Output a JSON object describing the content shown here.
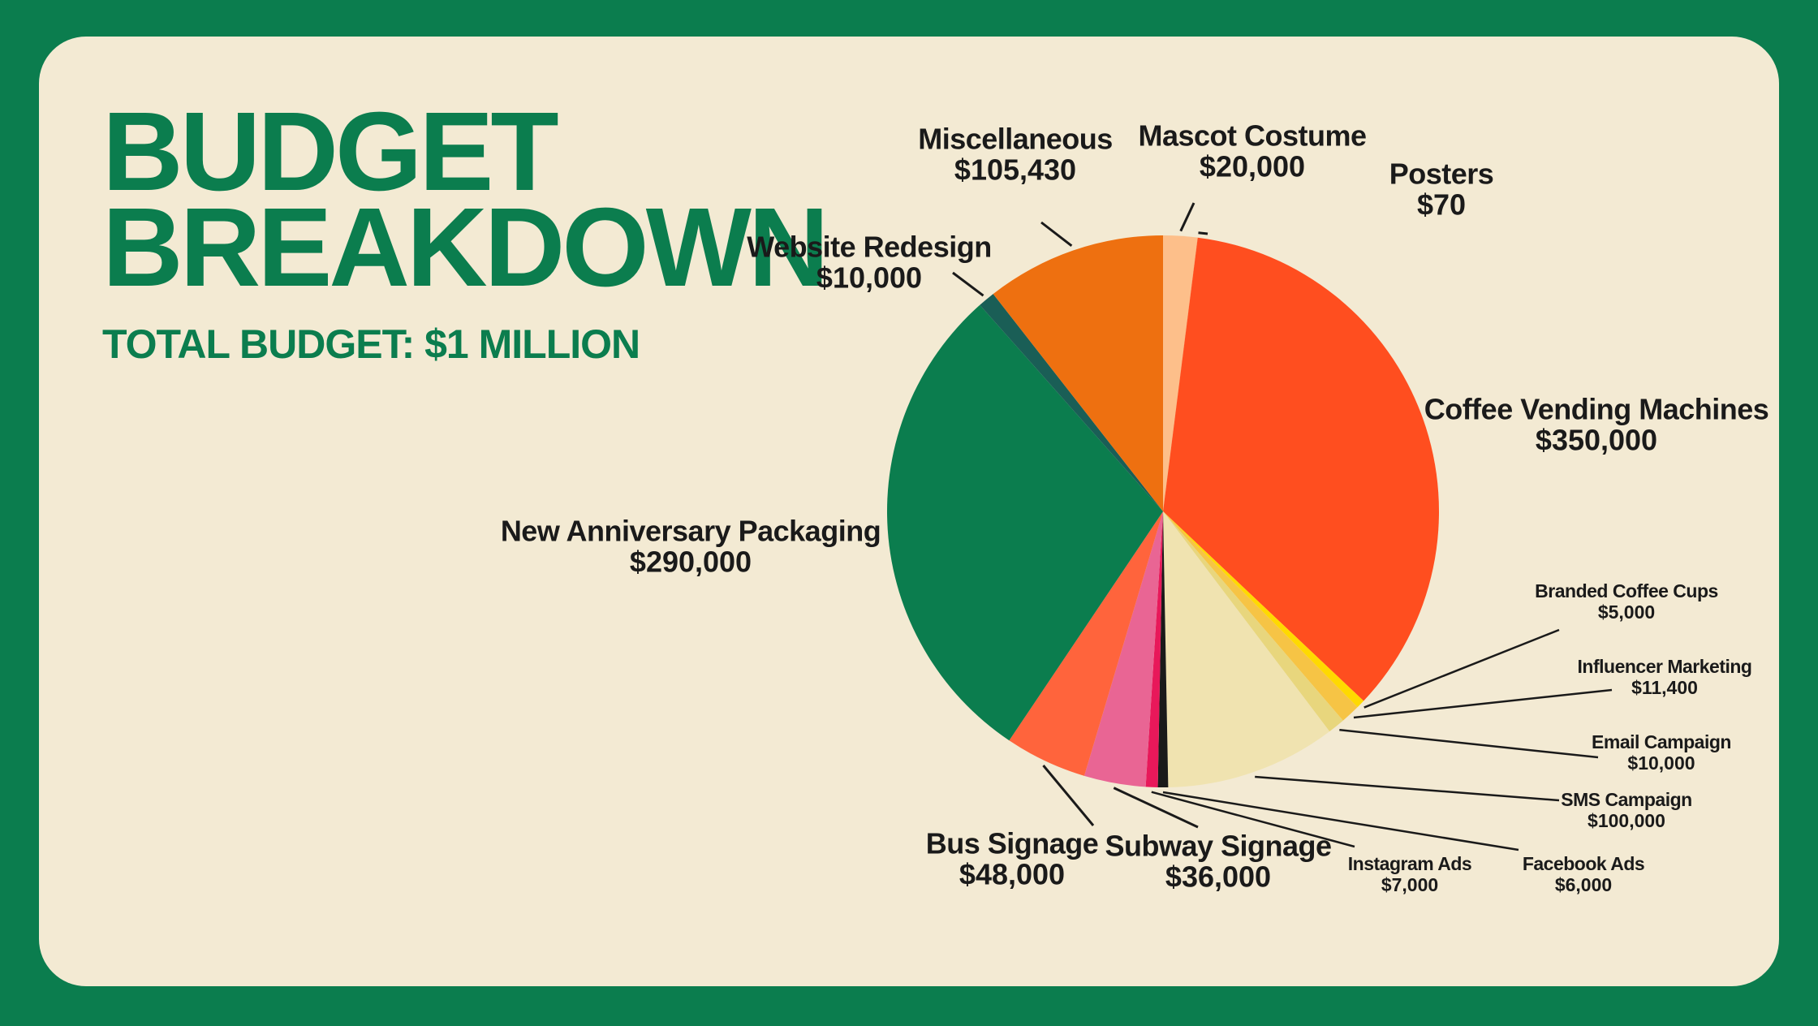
{
  "chart_data": {
    "type": "pie",
    "title": "BUDGET BREAKDOWN",
    "subtitle": "TOTAL BUDGET: $1 MILLION",
    "categories": [
      "Mascot Costume",
      "Posters",
      "Coffee Vending Machines",
      "Branded Coffee Cups",
      "Influencer Marketing",
      "Email Campaign",
      "SMS Campaign",
      "Facebook Ads",
      "Instagram Ads",
      "Subway Signage",
      "Bus Signage",
      "New Anniversary Packaging",
      "Website Redesign",
      "Miscellaneous"
    ],
    "values": [
      20000,
      70,
      350000,
      5000,
      11400,
      10000,
      100000,
      6000,
      7000,
      36000,
      48000,
      290000,
      10000,
      105430
    ],
    "value_labels": [
      "$20,000",
      "$70",
      "$350,000",
      "$5,000",
      "$11,400",
      "$10,000",
      "$100,000",
      "$6,000",
      "$7,000",
      "$36,000",
      "$48,000",
      "$290,000",
      "$10,000",
      "$105,430"
    ],
    "colors": [
      "#fdbf8a",
      "#ff6a2a",
      "#ff4e1f",
      "#ffd900",
      "#f6c445",
      "#e8d67d",
      "#f0e3b0",
      "#1a1a1a",
      "#e8185a",
      "#e96594",
      "#ff643c",
      "#0b7d4e",
      "#1a5e56",
      "#ee7010"
    ]
  }
}
